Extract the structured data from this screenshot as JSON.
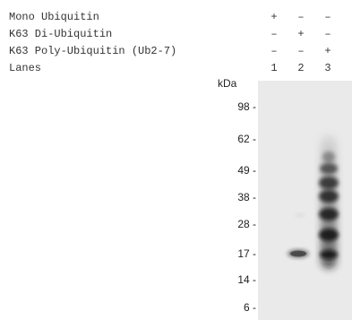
{
  "legend": {
    "rows": [
      {
        "label": "Mono Ubiquitin",
        "cells": [
          "+",
          "–",
          "–"
        ]
      },
      {
        "label": "K63 Di-Ubiquitin",
        "cells": [
          "–",
          "+",
          "–"
        ]
      },
      {
        "label": "K63 Poly-Ubiquitin (Ub2-7)",
        "cells": [
          "–",
          "–",
          "+"
        ]
      },
      {
        "label": "Lanes",
        "cells": [
          "1",
          "2",
          "3"
        ]
      }
    ]
  },
  "markers": {
    "unit": "kDa",
    "labels": [
      "98 -",
      "62 -",
      "49 -",
      "38 -",
      "28 -",
      "17 -",
      "14 -",
      "6 -"
    ]
  }
}
